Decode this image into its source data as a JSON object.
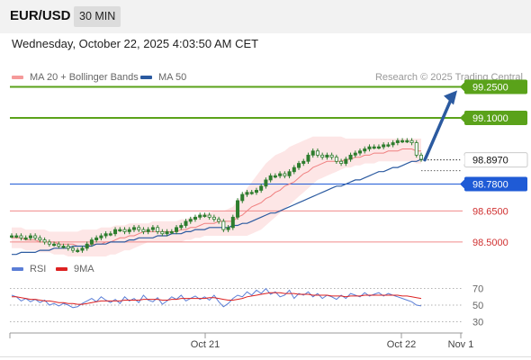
{
  "header": {
    "symbol": "EUR/USD",
    "timeframe": "30 MIN",
    "datetime": "Wednesday, October 22, 2025 4:03:50 AM CET",
    "credit": "Research © 2025 Trading Central"
  },
  "legend": {
    "ma20": "MA 20 + Bollinger Bands",
    "ma50": "MA 50",
    "rsi": "RSI",
    "rsi_ma": "9MA"
  },
  "colors": {
    "green_level": "#5aa21a",
    "blue_level": "#1f5bd6",
    "red_level": "#f08a8a",
    "ma20": "#f08080",
    "ma50": "#2b5aa0",
    "band_fill": "#fde6e6",
    "candle": "#2e7d2e",
    "rsi": "#5b7ed6",
    "rsi_ma": "#dd2222",
    "arrow": "#2b5aa0"
  },
  "chart_data": [
    {
      "type": "candlestick",
      "title": "EUR/USD 30 MIN",
      "ylim": [
        98.43,
        99.3
      ],
      "x_ticks": [
        "Oct 21",
        "Oct 22",
        "Nov 1"
      ],
      "levels": [
        {
          "value": 99.25,
          "label": "99.2500",
          "kind": "resistance"
        },
        {
          "value": 99.1,
          "label": "99.1000",
          "kind": "resistance"
        },
        {
          "value": 98.897,
          "label": "98.8970",
          "kind": "current"
        },
        {
          "value": 98.78,
          "label": "98.7800",
          "kind": "pivot"
        },
        {
          "value": 98.65,
          "label": "98.6500",
          "kind": "support"
        },
        {
          "value": 98.5,
          "label": "98.5000",
          "kind": "support"
        }
      ],
      "close": [
        98.53,
        98.53,
        98.52,
        98.52,
        98.53,
        98.52,
        98.51,
        98.5,
        98.49,
        98.49,
        98.48,
        98.48,
        98.47,
        98.46,
        98.46,
        98.47,
        98.49,
        98.51,
        98.52,
        98.53,
        98.54,
        98.54,
        98.56,
        98.56,
        98.55,
        98.56,
        98.57,
        98.56,
        98.55,
        98.56,
        98.57,
        98.55,
        98.54,
        98.55,
        98.55,
        98.57,
        98.58,
        98.6,
        98.61,
        98.62,
        98.63,
        98.63,
        98.62,
        98.61,
        98.6,
        98.56,
        98.57,
        98.62,
        98.7,
        98.73,
        98.74,
        98.74,
        98.75,
        98.77,
        98.8,
        98.82,
        98.82,
        98.83,
        98.82,
        98.84,
        98.86,
        98.88,
        98.89,
        98.92,
        98.94,
        98.92,
        98.91,
        98.92,
        98.91,
        98.89,
        98.88,
        98.9,
        98.92,
        98.93,
        98.94,
        98.95,
        98.96,
        98.96,
        98.96,
        98.97,
        98.97,
        98.98,
        98.99,
        98.99,
        98.99,
        98.98,
        98.92,
        98.9
      ],
      "ma20": [
        98.52,
        98.52,
        98.52,
        98.51,
        98.51,
        98.51,
        98.5,
        98.5,
        98.5,
        98.5,
        98.49,
        98.49,
        98.49,
        98.49,
        98.48,
        98.48,
        98.48,
        98.49,
        98.49,
        98.49,
        98.5,
        98.5,
        98.51,
        98.52,
        98.52,
        98.53,
        98.53,
        98.54,
        98.55,
        98.55,
        98.55,
        98.55,
        98.55,
        98.55,
        98.55,
        98.55,
        98.56,
        98.56,
        98.57,
        98.57,
        98.58,
        98.59,
        98.59,
        98.59,
        98.6,
        98.6,
        98.6,
        98.6,
        98.62,
        98.63,
        98.65,
        98.67,
        98.68,
        98.69,
        98.71,
        98.72,
        98.74,
        98.75,
        98.77,
        98.78,
        98.79,
        98.81,
        98.83,
        98.84,
        98.86,
        98.87,
        98.88,
        98.89,
        98.89,
        98.89,
        98.89,
        98.9,
        98.9,
        98.91,
        98.91,
        98.92,
        98.92,
        98.93,
        98.93,
        98.93,
        98.94,
        98.94,
        98.94,
        98.95,
        98.95,
        98.95,
        98.94,
        98.94
      ],
      "ma50": [
        98.44,
        98.44,
        98.45,
        98.45,
        98.45,
        98.45,
        98.46,
        98.46,
        98.46,
        98.47,
        98.47,
        98.47,
        98.47,
        98.48,
        98.48,
        98.48,
        98.48,
        98.48,
        98.49,
        98.49,
        98.49,
        98.5,
        98.5,
        98.5,
        98.5,
        98.51,
        98.51,
        98.52,
        98.52,
        98.52,
        98.52,
        98.53,
        98.53,
        98.53,
        98.54,
        98.54,
        98.54,
        98.55,
        98.55,
        98.56,
        98.56,
        98.56,
        98.57,
        98.57,
        98.57,
        98.57,
        98.57,
        98.58,
        98.58,
        98.59,
        98.59,
        98.6,
        98.61,
        98.62,
        98.63,
        98.64,
        98.64,
        98.65,
        98.66,
        98.67,
        98.68,
        98.69,
        98.7,
        98.71,
        98.72,
        98.73,
        98.74,
        98.75,
        98.76,
        98.77,
        98.77,
        98.78,
        98.79,
        98.8,
        98.8,
        98.81,
        98.82,
        98.83,
        98.84,
        98.84,
        98.85,
        98.86,
        98.86,
        98.87,
        98.88,
        98.89,
        98.89,
        98.9
      ],
      "band_upper": [
        98.57,
        98.57,
        98.57,
        98.56,
        98.56,
        98.56,
        98.56,
        98.56,
        98.55,
        98.55,
        98.55,
        98.55,
        98.55,
        98.55,
        98.55,
        98.56,
        98.56,
        98.56,
        98.56,
        98.57,
        98.57,
        98.57,
        98.58,
        98.58,
        98.58,
        98.59,
        98.59,
        98.59,
        98.59,
        98.59,
        98.6,
        98.6,
        98.6,
        98.6,
        98.6,
        98.6,
        98.61,
        98.61,
        98.62,
        98.62,
        98.63,
        98.64,
        98.64,
        98.65,
        98.65,
        98.65,
        98.66,
        98.67,
        98.7,
        98.73,
        98.76,
        98.79,
        98.82,
        98.85,
        98.88,
        98.9,
        98.92,
        98.93,
        98.94,
        98.96,
        98.97,
        98.98,
        98.99,
        99.0,
        99.01,
        99.01,
        99.01,
        99.01,
        99.01,
        99.01,
        99.01,
        99.0,
        99.0,
        99.0,
        99.0,
        99.0,
        99.0,
        99.0,
        99.0,
        99.0,
        99.0,
        99.0,
        99.0,
        99.0,
        99.0,
        99.0,
        99.0,
        99.0
      ],
      "band_lower": [
        98.47,
        98.47,
        98.47,
        98.46,
        98.46,
        98.46,
        98.45,
        98.45,
        98.45,
        98.44,
        98.44,
        98.44,
        98.43,
        98.43,
        98.43,
        98.43,
        98.43,
        98.43,
        98.43,
        98.43,
        98.43,
        98.44,
        98.44,
        98.45,
        98.46,
        98.46,
        98.47,
        98.48,
        98.49,
        98.5,
        98.5,
        98.5,
        98.5,
        98.5,
        98.5,
        98.5,
        98.5,
        98.51,
        98.51,
        98.52,
        98.52,
        98.53,
        98.53,
        98.53,
        98.53,
        98.53,
        98.53,
        98.53,
        98.53,
        98.53,
        98.53,
        98.54,
        98.55,
        98.56,
        98.58,
        98.6,
        98.62,
        98.64,
        98.66,
        98.68,
        98.7,
        98.72,
        98.74,
        98.76,
        98.78,
        98.8,
        98.81,
        98.82,
        98.83,
        98.84,
        98.85,
        98.86,
        98.86,
        98.87,
        98.87,
        98.88,
        98.88,
        98.88,
        98.89,
        98.89,
        98.89,
        98.89,
        98.89,
        98.89,
        98.89,
        98.89,
        98.88,
        98.88
      ],
      "projection": {
        "from": 98.897,
        "to": 99.25
      }
    },
    {
      "type": "line",
      "title": "RSI",
      "ylim": [
        25,
        75
      ],
      "y_ticks": [
        70,
        50,
        30
      ],
      "series": [
        {
          "name": "RSI",
          "values": [
            62,
            60,
            55,
            58,
            54,
            57,
            53,
            56,
            50,
            52,
            49,
            52,
            50,
            47,
            48,
            52,
            55,
            58,
            54,
            60,
            56,
            53,
            57,
            52,
            60,
            55,
            58,
            53,
            62,
            56,
            54,
            59,
            51,
            55,
            60,
            57,
            62,
            55,
            58,
            61,
            57,
            60,
            56,
            62,
            54,
            48,
            52,
            58,
            62,
            60,
            66,
            62,
            68,
            64,
            70,
            63,
            66,
            60,
            62,
            68,
            58,
            64,
            62,
            66,
            60,
            64,
            58,
            62,
            60,
            57,
            62,
            58,
            64,
            62,
            60,
            65,
            61,
            63,
            65,
            61,
            64,
            62,
            60,
            58,
            56,
            54,
            50,
            49
          ]
        },
        {
          "name": "9MA",
          "values": [
            60,
            60,
            59,
            58,
            57,
            57,
            56,
            55,
            55,
            54,
            53,
            53,
            52,
            52,
            51,
            51,
            52,
            53,
            54,
            55,
            55,
            55,
            55,
            55,
            56,
            56,
            56,
            56,
            57,
            57,
            57,
            57,
            56,
            56,
            57,
            57,
            58,
            58,
            58,
            58,
            58,
            58,
            59,
            59,
            58,
            57,
            56,
            56,
            57,
            58,
            60,
            61,
            62,
            63,
            64,
            65,
            65,
            65,
            64,
            64,
            64,
            63,
            63,
            63,
            62,
            62,
            62,
            62,
            61,
            61,
            61,
            60,
            61,
            61,
            61,
            62,
            62,
            62,
            62,
            62,
            62,
            62,
            62,
            61,
            61,
            60,
            59,
            58
          ]
        }
      ]
    }
  ]
}
